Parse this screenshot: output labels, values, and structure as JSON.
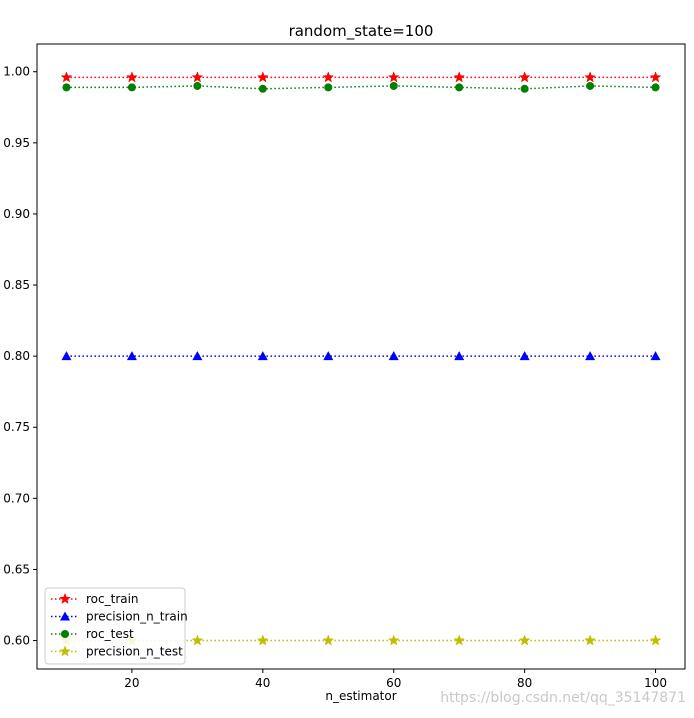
{
  "watermark": "https://blog.csdn.net/qq_35147871",
  "chart_data": {
    "type": "line",
    "title": "random_state=100",
    "xlabel": "n_estimator",
    "ylabel": "",
    "x": [
      10,
      20,
      30,
      40,
      50,
      60,
      70,
      80,
      90,
      100
    ],
    "xticks": [
      20,
      40,
      60,
      80,
      100
    ],
    "xlim": [
      5.5,
      104.5
    ],
    "yticks": [
      0.6,
      0.65,
      0.7,
      0.75,
      0.8,
      0.85,
      0.9,
      0.95,
      1.0
    ],
    "ylim": [
      0.58,
      1.0195
    ],
    "grid": false,
    "legend_position": "lower-left",
    "series": [
      {
        "name": "roc_train",
        "color": "#ff0000",
        "marker": "star",
        "values": [
          0.996,
          0.996,
          0.996,
          0.996,
          0.996,
          0.996,
          0.996,
          0.996,
          0.996,
          0.996
        ]
      },
      {
        "name": "precision_n_train",
        "color": "#0000ff",
        "marker": "triangle",
        "values": [
          0.8,
          0.8,
          0.8,
          0.8,
          0.8,
          0.8,
          0.8,
          0.8,
          0.8,
          0.8
        ]
      },
      {
        "name": "roc_test",
        "color": "#008000",
        "marker": "circle",
        "values": [
          0.989,
          0.989,
          0.99,
          0.988,
          0.989,
          0.99,
          0.989,
          0.988,
          0.99,
          0.989
        ]
      },
      {
        "name": "precision_n_test",
        "color": "#bfbf00",
        "marker": "star",
        "values": [
          0.6,
          0.6,
          0.6,
          0.6,
          0.6,
          0.6,
          0.6,
          0.6,
          0.6,
          0.6
        ]
      }
    ]
  }
}
